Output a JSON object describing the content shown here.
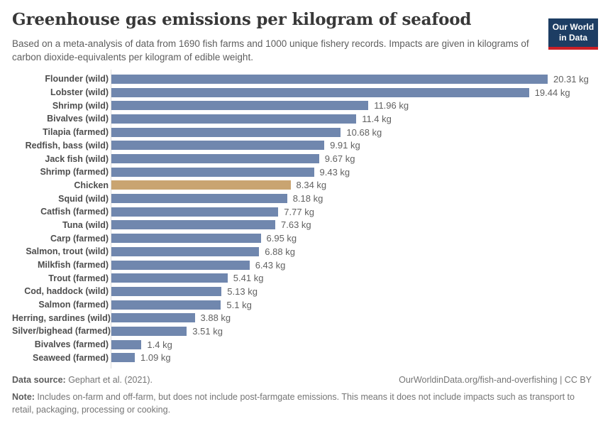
{
  "header": {
    "title": "Greenhouse gas emissions per kilogram of seafood",
    "subtitle": "Based on a meta-analysis of data from 1690 fish farms and 1000 unique fishery records. Impacts are given in kilograms of carbon dioxide-equivalents per kilogram of edible weight.",
    "logo": {
      "line1": "Our World",
      "line2": "in Data"
    }
  },
  "chart_data": {
    "type": "bar",
    "orientation": "horizontal",
    "title": "Greenhouse gas emissions per kilogram of seafood",
    "xlabel": "kg CO2-equivalents per kg edible weight",
    "ylabel": "",
    "xlim": [
      0,
      20.31
    ],
    "grid": false,
    "legend": "none",
    "categories": [
      "Flounder (wild)",
      "Lobster (wild)",
      "Shrimp (wild)",
      "Bivalves (wild)",
      "Tilapia (farmed)",
      "Redfish, bass (wild)",
      "Jack fish (wild)",
      "Shrimp (farmed)",
      "Chicken",
      "Squid (wild)",
      "Catfish (farmed)",
      "Tuna (wild)",
      "Carp (farmed)",
      "Salmon, trout (wild)",
      "Milkfish (farmed)",
      "Trout (farmed)",
      "Cod, haddock (wild)",
      "Salmon (farmed)",
      "Herring, sardines (wild)",
      "Silver/bighead (farmed)",
      "Bivalves (farmed)",
      "Seaweed (farmed)"
    ],
    "values": [
      20.31,
      19.44,
      11.96,
      11.4,
      10.68,
      9.91,
      9.67,
      9.43,
      8.34,
      8.18,
      7.77,
      7.63,
      6.95,
      6.88,
      6.43,
      5.41,
      5.13,
      5.1,
      3.88,
      3.51,
      1.4,
      1.09
    ],
    "value_labels": [
      "20.31 kg",
      "19.44 kg",
      "11.96 kg",
      "11.4 kg",
      "10.68 kg",
      "9.91 kg",
      "9.67 kg",
      "9.43 kg",
      "8.34 kg",
      "8.18 kg",
      "7.77 kg",
      "7.63 kg",
      "6.95 kg",
      "6.88 kg",
      "6.43 kg",
      "5.41 kg",
      "5.13 kg",
      "5.1 kg",
      "3.88 kg",
      "3.51 kg",
      "1.4 kg",
      "1.09 kg"
    ],
    "highlight_category": "Chicken",
    "bar_color": "#7087ae",
    "highlight_color": "#c9a471"
  },
  "footer": {
    "datasource_label": "Data source:",
    "datasource_value": " Gephart et al. (2021).",
    "link": "OurWorldinData.org/fish-and-overfishing | CC BY",
    "note_label": "Note:",
    "note_value": " Includes on-farm and off-farm, but does not include post-farmgate emissions. This means it does not include impacts such as transport to retail, packaging, processing or cooking."
  },
  "colors": {
    "bar_blue": "#7087ae",
    "bar_highlight": "#c9a471",
    "logo_navy": "#1d3d63",
    "logo_red": "#cb2026",
    "axis_line": "#dcdcdc",
    "title_text": "#383838",
    "muted_text": "#757575"
  }
}
